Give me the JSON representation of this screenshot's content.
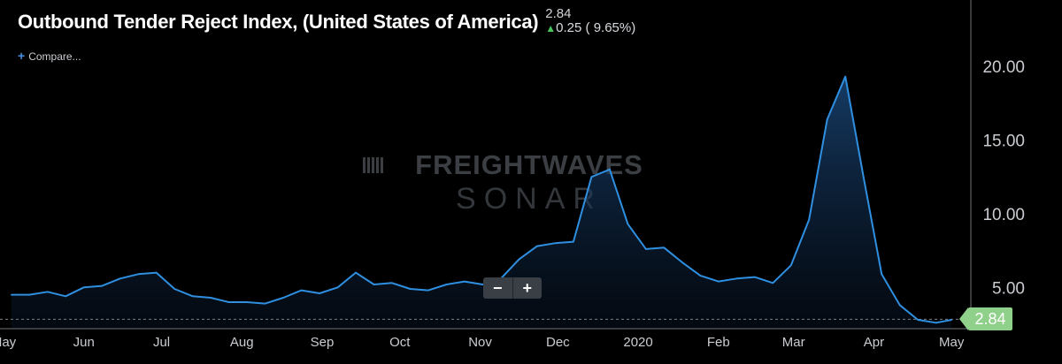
{
  "header": {
    "title": "Outbound Tender Reject Index, (United States of America)",
    "last_value": "2.84",
    "change_text": "0.25 ( 9.65%)",
    "compare_label": "Compare..."
  },
  "watermark": {
    "line1": "FREIGHTWAVES",
    "line2": "SONAR"
  },
  "zoom": {
    "minus": "−",
    "plus": "+"
  },
  "colors": {
    "line": "#2f8fe0",
    "up": "#4cc35a",
    "badge": "#8fd08a",
    "axis_text": "#c9ccd1"
  },
  "chart_data": {
    "type": "area",
    "title": "Outbound Tender Reject Index, (United States of America)",
    "ylim": [
      2.2,
      24.5
    ],
    "yticks": [
      5.0,
      10.0,
      15.0,
      20.0
    ],
    "ytick_labels": [
      "5.00",
      "10.00",
      "15.00",
      "20.00"
    ],
    "xticks": [
      {
        "label": "May",
        "date": "2019-05-01"
      },
      {
        "label": "Jun",
        "date": "2019-06-01"
      },
      {
        "label": "Jul",
        "date": "2019-07-01"
      },
      {
        "label": "Aug",
        "date": "2019-08-01"
      },
      {
        "label": "Sep",
        "date": "2019-09-01"
      },
      {
        "label": "Oct",
        "date": "2019-10-01"
      },
      {
        "label": "Nov",
        "date": "2019-11-01"
      },
      {
        "label": "Dec",
        "date": "2019-12-01"
      },
      {
        "label": "2020",
        "date": "2020-01-01"
      },
      {
        "label": "Feb",
        "date": "2020-02-01"
      },
      {
        "label": "Mar",
        "date": "2020-03-01"
      },
      {
        "label": "Apr",
        "date": "2020-04-01"
      },
      {
        "label": "May",
        "date": "2020-05-01"
      }
    ],
    "x_domain": [
      "2019-05-01",
      "2020-05-04"
    ],
    "last_value": 2.84,
    "last_value_label": "2.84",
    "grid": false,
    "series": [
      {
        "x": [
          "2019-05-04",
          "2019-05-11",
          "2019-05-18",
          "2019-05-25",
          "2019-06-01",
          "2019-06-08",
          "2019-06-15",
          "2019-06-22",
          "2019-06-29",
          "2019-07-06",
          "2019-07-13",
          "2019-07-20",
          "2019-07-27",
          "2019-08-03",
          "2019-08-10",
          "2019-08-17",
          "2019-08-24",
          "2019-08-31",
          "2019-09-07",
          "2019-09-14",
          "2019-09-21",
          "2019-09-28",
          "2019-10-05",
          "2019-10-12",
          "2019-10-19",
          "2019-10-26",
          "2019-11-02",
          "2019-11-09",
          "2019-11-16",
          "2019-11-23",
          "2019-11-30",
          "2019-12-07",
          "2019-12-14",
          "2019-12-21",
          "2019-12-28",
          "2020-01-04",
          "2020-01-11",
          "2020-01-18",
          "2020-01-25",
          "2020-02-01",
          "2020-02-08",
          "2020-02-15",
          "2020-02-22",
          "2020-02-29",
          "2020-03-07",
          "2020-03-14",
          "2020-03-21",
          "2020-03-28",
          "2020-04-04",
          "2020-04-11",
          "2020-04-18",
          "2020-04-25",
          "2020-05-01"
        ],
        "y": [
          4.5,
          4.5,
          4.7,
          4.4,
          5.0,
          5.1,
          5.6,
          5.9,
          6.0,
          4.9,
          4.4,
          4.3,
          4.0,
          4.0,
          3.9,
          4.3,
          4.8,
          4.6,
          5.0,
          6.0,
          5.2,
          5.3,
          4.9,
          4.8,
          5.2,
          5.4,
          5.2,
          5.6,
          6.9,
          7.8,
          8.0,
          8.1,
          12.5,
          13.0,
          9.3,
          7.6,
          7.7,
          6.7,
          5.8,
          5.4,
          5.6,
          5.7,
          5.3,
          6.5,
          9.6,
          16.4,
          19.3,
          12.5,
          5.9,
          3.8,
          2.8,
          2.6,
          2.8
        ]
      }
    ]
  }
}
